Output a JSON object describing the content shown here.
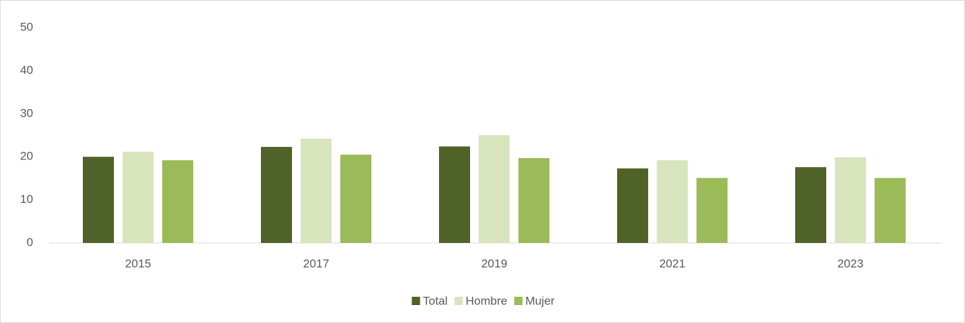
{
  "chart_data": {
    "type": "bar",
    "categories": [
      "2015",
      "2017",
      "2019",
      "2021",
      "2023"
    ],
    "series": [
      {
        "name": "Total",
        "color": "#4f6228",
        "values": [
          20.0,
          22.3,
          22.4,
          17.3,
          17.6
        ]
      },
      {
        "name": "Hombre",
        "color": "#d8e4bc",
        "values": [
          21.2,
          24.2,
          25.0,
          19.2,
          19.9
        ]
      },
      {
        "name": "Mujer",
        "color": "#9bbb59",
        "values": [
          19.2,
          20.5,
          19.7,
          15.1,
          15.1
        ]
      }
    ],
    "ylim": [
      0,
      50
    ],
    "yticks": [
      0,
      10,
      20,
      30,
      40,
      50
    ],
    "grid": false,
    "legend": "bottom"
  }
}
